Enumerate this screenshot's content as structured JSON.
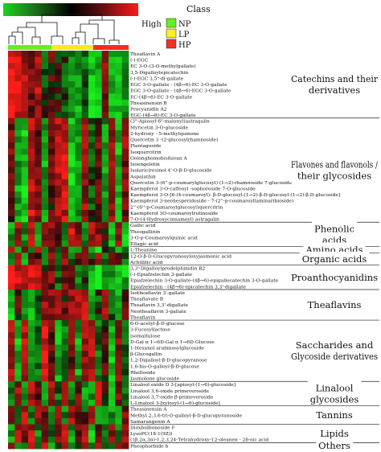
{
  "chart_data": {
    "type": "heatmap",
    "color_key": {
      "label": "High",
      "stops": [
        "#1fd21f",
        "#1a6a1a",
        "#000000",
        "#6a1010",
        "#ff1a1a"
      ]
    },
    "class_legend": {
      "title": "Class",
      "items": [
        {
          "label": "NP",
          "color": "#66ee22"
        },
        {
          "label": "LP",
          "color": "#ffee22"
        },
        {
          "label": "HP",
          "color": "#ee3322"
        }
      ]
    },
    "columns": [
      "HP",
      "HP",
      "HP",
      "HP",
      "HP",
      "HP",
      "LP",
      "LP",
      "LP",
      "LP",
      "LP",
      "LP",
      "NP",
      "NP",
      "NP",
      "NP",
      "NP",
      "NP"
    ],
    "rows": [
      "Theaflavin A",
      "(-)-EGC",
      "EC 3-O-(3-O-methylgallate)",
      "3,5-Digalloylepicatechin",
      "(-)-EGC 3,5\"-di-gallate",
      "EGC 3-O-gallate - (4β→6)-EC 3-O-gallate",
      "EGC 3-O-gallate - (4β→6)-EGC 3-O-gallate",
      "EC-(4β→8)-EC 3-O-gallate",
      "Theasinensin B",
      "Procyanidin A2",
      "EGC-(4β→8)-EC 3-O-gallate",
      "(3\"-Apiosyl-6\"-malonyl)astragalin",
      "Myricetin 3-O-glucoside",
      "2-hydroxy - 5-methylquinone",
      "Quercetin 3 -(2-glucosylrhamnoside)",
      "Plantagoside",
      "Isoquercitrin",
      "Oolonghomobisflavan A",
      "Isoengeletin",
      "Isolariciresinol 4'-O-β-D-glucoside",
      "Aspalathin",
      "Quercetin 3-(6''-p-coumarylglucosyl) (1→2)-rhamnoside 7-glucoside",
      "Kaempferol 3-O-caffeoyl -sophoroside 7-O-glucoside",
      "Kaempferol 3-O-[6-(4-coumaroyl)- β-D-glucosyl-(1→2)-β-D-glucosyl-(1→2)-β-D-glucoside]",
      "Kaempferol 3-neohesperidoside - 7-(2''-p-coumaroyllaminaribioside)",
      "2''-(6''-p-Coumaroylglucosyl)quercitrin",
      "Kaempferol 3O-coumaroylrutinoside",
      "7-O-(4-Hydroxycinnamoyl) astragalin",
      "Gallic acid",
      "Theogallinin",
      "3-O-p-Coumaroylquinic acid",
      "Ellagic acid",
      "L-Theanine",
      "12-O-β-D-Glucopyranosyloxyjasmonic acid",
      "Achillilic acid",
      "3,3'-Digalloylprodelphinidin B2",
      "(-)-Epiafzelechin 3-gallate",
      "Epiafzelechin 3-O-gallate-(4β→6)-epigallocatechin 3-O-gallate",
      "Epiafzelechin - (4β→6)-epicatechin 3,3'-digallate",
      "Isotheaflavin 3'-gallate",
      "Theaflavate B",
      "Theaflavin 3,3'-digallate",
      "Neotheaflavin 3-gallate",
      "Theaflavin",
      "6-O-acetyl-β-D-glucose",
      "3-Fucosyllactose",
      "isomaltulose",
      "D-Gal α 1→6D-Gal α 1→6D-Glucose",
      "1-Hexanol arabinosylglucoside",
      "β-Glucogallin",
      "1,2-Digalloyl-β-D-glucopyranose",
      "1,6-bis-O-galloyl-β-D-glucose",
      "Rhelloside",
      "Jasmolone glucoside",
      "Linalool oxide D 3-[apiosyl-(1→6)-glucoside]",
      "Linalool 3,6-oxide primeveroside",
      "Linalool 3,7-oxide β-primeveroside",
      "L-Linalool 3-[xylosyl-(1→6)-glucoside]",
      "Theasinensin A",
      "Methyl 2,3,6-tri-O-galloyl-β-D-glucopyranoside",
      "Samarangenin A",
      "Dioxbulbonoside F",
      "LysoPC(18:1(9Z))",
      "(1β,2α,3α)-1,2,3,24-Tetrahydroxy-12-oleanen - 28-oic acid",
      "Pheophorbide b"
    ],
    "groups": [
      {
        "label": "Catechins and their derivatives",
        "start": 0,
        "end": 10
      },
      {
        "label": "Flavones and flavonols / their glycosides",
        "start": 11,
        "end": 27
      },
      {
        "label": "Phenolic acids",
        "start": 28,
        "end": 31
      },
      {
        "label": "Amino acids",
        "start": 32,
        "end": 32
      },
      {
        "label": "Organic acids",
        "start": 33,
        "end": 34
      },
      {
        "label": "Proanthocyanidins",
        "start": 35,
        "end": 38
      },
      {
        "label": "Theaflavins",
        "start": 39,
        "end": 43
      },
      {
        "label": "Saccharides and Glycoside derivatives",
        "start": 44,
        "end": 53
      },
      {
        "label": "Linalool glycosides",
        "start": 54,
        "end": 57
      },
      {
        "label": "Tannins",
        "start": 58,
        "end": 60
      },
      {
        "label": "Lipids",
        "start": 61,
        "end": 63
      },
      {
        "label": "Others",
        "start": 64,
        "end": 64
      }
    ],
    "group_patterns": [
      [
        1,
        0.8,
        0.6,
        0.3,
        0.6,
        -0.2,
        0.2,
        0,
        -0.2,
        -0.5,
        -0.6,
        -0.3,
        -0.8,
        -0.7,
        0.4,
        -0.6,
        -0.8,
        -0.6
      ],
      [
        0.3,
        -0.6,
        -0.8,
        0.7,
        0.3,
        -0.6,
        0.2,
        0.6,
        0.7,
        -0.8,
        -0.6,
        0.5,
        -0.2,
        0.3,
        -0.5,
        0.4,
        -0.7,
        0.4
      ],
      [
        -0.6,
        0.5,
        -0.4,
        0.6,
        -0.6,
        0.2,
        0.4,
        0.3,
        -0.5,
        0.7,
        0.4,
        -0.5,
        0.6,
        0.5,
        0.2,
        -0.8,
        0.4,
        -0.7
      ],
      [
        0.8,
        -0.6,
        0.6,
        -0.4,
        0.4,
        -0.5,
        0.2,
        -0.2,
        0.3,
        -0.8,
        -0.7,
        0.1,
        -0.5,
        -0.8,
        0.2,
        -0.3,
        -0.9,
        -0.6
      ],
      [
        -0.3,
        0.6,
        -0.6,
        0.4,
        0.3,
        -0.6,
        0.6,
        -0.3,
        0.5,
        -0.4,
        0.2,
        0.3,
        -0.2,
        0.5,
        -0.4,
        0.3,
        0.2,
        -0.3
      ],
      [
        0.9,
        0.7,
        0.5,
        0.8,
        0.7,
        0.1,
        0.3,
        -0.3,
        0.4,
        0.2,
        -0.6,
        -0.2,
        -0.8,
        -0.9,
        -0.6,
        -0.5,
        -0.8,
        -0.7
      ],
      [
        -0.8,
        0.2,
        -0.4,
        -0.6,
        -0.2,
        0.5,
        0.4,
        0.6,
        0.2,
        0.5,
        0.7,
        0.6,
        -0.6,
        -0.2,
        0.7,
        -0.3,
        -0.6,
        0.2
      ],
      [
        0.6,
        -0.7,
        0.6,
        -0.5,
        -0.3,
        0.8,
        0.2,
        -0.6,
        -0.4,
        0.3,
        -0.6,
        0.5,
        0.6,
        -0.3,
        0.2,
        -0.7,
        0.5,
        -0.3
      ],
      [
        -0.4,
        0.5,
        -0.6,
        0.6,
        0.3,
        -0.6,
        0.5,
        -0.3,
        0.6,
        -0.4,
        0.3,
        -0.5,
        -0.6,
        0.6,
        0.2,
        -0.6,
        0.4,
        -0.4
      ],
      [
        0.5,
        -0.3,
        0.6,
        -0.5,
        0.4,
        0.4,
        -0.5,
        0.5,
        -0.4,
        0.6,
        0.3,
        -0.2,
        0.4,
        -0.6,
        -0.4,
        -0.5,
        -0.5,
        0.3
      ],
      [
        -0.5,
        0.5,
        0.3,
        0.6,
        -0.4,
        0.5,
        -0.3,
        0.4,
        0.6,
        -0.5,
        0.2,
        0.5,
        -0.7,
        0.3,
        -0.5,
        0.4,
        -0.5,
        0.5
      ],
      [
        0.7,
        -0.3,
        -0.6,
        0.5,
        -0.5,
        0.7,
        -0.5,
        0.2,
        0.6,
        -0.5,
        -0.3,
        0.4,
        -0.6,
        0.5,
        -0.4,
        -0.2,
        0.3,
        0.6
      ]
    ]
  }
}
